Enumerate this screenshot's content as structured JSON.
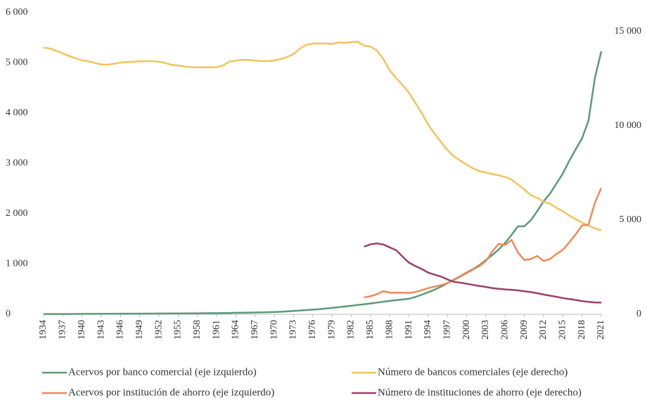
{
  "chart_data": {
    "type": "line",
    "x": [
      1934,
      1935,
      1936,
      1937,
      1938,
      1939,
      1940,
      1941,
      1942,
      1943,
      1944,
      1945,
      1946,
      1947,
      1948,
      1949,
      1950,
      1951,
      1952,
      1953,
      1954,
      1955,
      1956,
      1957,
      1958,
      1959,
      1960,
      1961,
      1962,
      1963,
      1964,
      1965,
      1966,
      1967,
      1968,
      1969,
      1970,
      1971,
      1972,
      1973,
      1974,
      1975,
      1976,
      1977,
      1978,
      1979,
      1980,
      1981,
      1982,
      1983,
      1984,
      1985,
      1986,
      1987,
      1988,
      1989,
      1990,
      1991,
      1992,
      1993,
      1994,
      1995,
      1996,
      1997,
      1998,
      1999,
      2000,
      2001,
      2002,
      2003,
      2004,
      2005,
      2006,
      2007,
      2008,
      2009,
      2010,
      2011,
      2012,
      2013,
      2014,
      2015,
      2016,
      2017,
      2018,
      2019,
      2020,
      2021
    ],
    "xlim": [
      1934,
      2021
    ],
    "xticks": [
      1934,
      1937,
      1940,
      1943,
      1946,
      1949,
      1952,
      1955,
      1958,
      1961,
      1964,
      1967,
      1970,
      1973,
      1976,
      1979,
      1982,
      1985,
      1988,
      1991,
      1994,
      1997,
      2000,
      2003,
      2006,
      2009,
      2012,
      2015,
      2018,
      2021
    ],
    "ylim": [
      0,
      6000
    ],
    "yticks": [
      0,
      {
        "value": 1000,
        "label": "1 000"
      },
      {
        "value": 2000,
        "label": "2 000"
      },
      {
        "value": 3000,
        "label": "3 000"
      },
      {
        "value": 4000,
        "label": "4 000"
      },
      {
        "value": 5000,
        "label": "5 000"
      },
      {
        "value": 6000,
        "label": "6 000"
      }
    ],
    "y2lim": [
      0,
      16000
    ],
    "y2ticks": [
      0,
      {
        "value": 5000,
        "label": "5 000"
      },
      {
        "value": 10000,
        "label": "10 000"
      },
      {
        "value": 15000,
        "label": "15 000"
      }
    ],
    "series": [
      {
        "name": "Acervos por banco comercial (eje izquierdo)",
        "color": "#5b9a78",
        "values": [
          5,
          5,
          5,
          6,
          6,
          7,
          8,
          8,
          9,
          10,
          11,
          11,
          12,
          12,
          13,
          13,
          14,
          14,
          15,
          16,
          17,
          17,
          18,
          19,
          20,
          21,
          22,
          23,
          25,
          27,
          29,
          31,
          33,
          36,
          39,
          42,
          46,
          51,
          58,
          67,
          76,
          84,
          92,
          102,
          115,
          128,
          142,
          155,
          170,
          185,
          200,
          215,
          232,
          250,
          268,
          282,
          295,
          310,
          345,
          390,
          440,
          490,
          550,
          620,
          690,
          760,
          830,
          900,
          980,
          1080,
          1180,
          1290,
          1420,
          1580,
          1750,
          1750,
          1870,
          2050,
          2250,
          2400,
          2600,
          2800,
          3050,
          3280,
          3500,
          3850,
          4700,
          5230
        ]
      },
      {
        "name": "Número de bancos comerciales (eje derecho)",
        "color": "#f2c45a",
        "axis": "y2",
        "values": [
          14140,
          14100,
          13970,
          13840,
          13700,
          13580,
          13470,
          13430,
          13330,
          13250,
          13240,
          13290,
          13350,
          13380,
          13400,
          13420,
          13430,
          13420,
          13400,
          13330,
          13230,
          13200,
          13140,
          13100,
          13100,
          13110,
          13100,
          13110,
          13200,
          13400,
          13460,
          13500,
          13490,
          13460,
          13430,
          13430,
          13460,
          13540,
          13650,
          13800,
          14100,
          14290,
          14360,
          14370,
          14360,
          14340,
          14420,
          14400,
          14440,
          14460,
          14250,
          14200,
          13990,
          13540,
          12940,
          12530,
          12160,
          11740,
          11220,
          10660,
          10060,
          9570,
          9130,
          8710,
          8380,
          8150,
          7930,
          7740,
          7590,
          7520,
          7440,
          7370,
          7290,
          7140,
          6880,
          6620,
          6320,
          6170,
          5980,
          5870,
          5650,
          5460,
          5240,
          5050,
          4860,
          4710,
          4560,
          4450
        ]
      },
      {
        "name": "Acervos por institución de ahorro (eje izquierdo)",
        "color": "#ee8a56",
        "values": [
          null,
          null,
          null,
          null,
          null,
          null,
          null,
          null,
          null,
          null,
          null,
          null,
          null,
          null,
          null,
          null,
          null,
          null,
          null,
          null,
          null,
          null,
          null,
          null,
          null,
          null,
          null,
          null,
          null,
          null,
          null,
          null,
          null,
          null,
          null,
          null,
          null,
          null,
          null,
          null,
          null,
          null,
          null,
          null,
          null,
          null,
          null,
          null,
          null,
          null,
          335,
          360,
          400,
          460,
          430,
          430,
          430,
          425,
          445,
          480,
          520,
          550,
          580,
          620,
          680,
          750,
          820,
          890,
          960,
          1060,
          1250,
          1400,
          1380,
          1480,
          1230,
          1080,
          1100,
          1160,
          1060,
          1100,
          1200,
          1280,
          1430,
          1590,
          1770,
          1780,
          2220,
          2510
        ]
      },
      {
        "name": "Número de instituciones de ahorro (eje derecho)",
        "color": "#9b3f6b",
        "axis": "y2",
        "values": [
          null,
          null,
          null,
          null,
          null,
          null,
          null,
          null,
          null,
          null,
          null,
          null,
          null,
          null,
          null,
          null,
          null,
          null,
          null,
          null,
          null,
          null,
          null,
          null,
          null,
          null,
          null,
          null,
          null,
          null,
          null,
          null,
          null,
          null,
          null,
          null,
          null,
          null,
          null,
          null,
          null,
          null,
          null,
          null,
          null,
          null,
          null,
          null,
          null,
          null,
          3590,
          3710,
          3760,
          3700,
          3550,
          3400,
          3060,
          2740,
          2560,
          2400,
          2210,
          2100,
          2000,
          1850,
          1720,
          1680,
          1620,
          1560,
          1500,
          1450,
          1390,
          1350,
          1320,
          1300,
          1270,
          1220,
          1180,
          1120,
          1050,
          990,
          930,
          860,
          810,
          760,
          700,
          660,
          630,
          620
        ]
      }
    ]
  }
}
